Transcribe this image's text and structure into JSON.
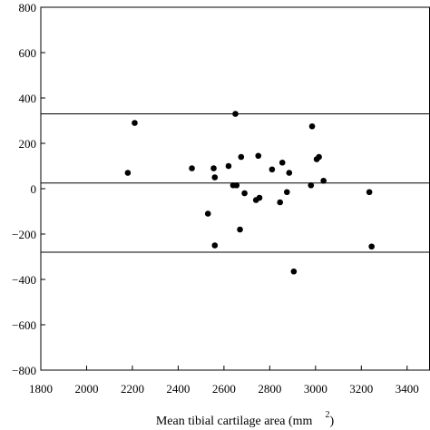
{
  "chart_data": {
    "type": "scatter",
    "title": "",
    "xlabel": "Mean tibial cartilage area (mm",
    "xlabel_superscript": "2",
    "xlabel_close": ")",
    "ylabel": "",
    "xlim": [
      1800,
      3500
    ],
    "ylim": [
      -800,
      800
    ],
    "x_ticks": [
      1800,
      2000,
      2200,
      2400,
      2600,
      2800,
      3000,
      3200,
      3400
    ],
    "y_ticks": [
      800,
      600,
      400,
      200,
      0,
      -200,
      -400,
      -600,
      -800
    ],
    "x_tick_labels": [
      "1800",
      "2000",
      "2200",
      "2400",
      "2600",
      "2800",
      "3000",
      "3200",
      "3400"
    ],
    "y_tick_labels": [
      "800",
      "600",
      "400",
      "200",
      "0",
      "−200",
      "−400",
      "−600",
      "−800"
    ],
    "reference_lines": [
      330,
      25,
      -280
    ],
    "grid": false,
    "points": [
      {
        "x": 2180,
        "y": 70
      },
      {
        "x": 2210,
        "y": 290
      },
      {
        "x": 2460,
        "y": 90
      },
      {
        "x": 2530,
        "y": -110
      },
      {
        "x": 2555,
        "y": 90
      },
      {
        "x": 2560,
        "y": 50
      },
      {
        "x": 2560,
        "y": -250
      },
      {
        "x": 2620,
        "y": 100
      },
      {
        "x": 2640,
        "y": 15
      },
      {
        "x": 2650,
        "y": 330
      },
      {
        "x": 2655,
        "y": 15
      },
      {
        "x": 2670,
        "y": -180
      },
      {
        "x": 2675,
        "y": 140
      },
      {
        "x": 2690,
        "y": -20
      },
      {
        "x": 2740,
        "y": -50
      },
      {
        "x": 2750,
        "y": 145
      },
      {
        "x": 2755,
        "y": -40
      },
      {
        "x": 2810,
        "y": 85
      },
      {
        "x": 2845,
        "y": -60
      },
      {
        "x": 2855,
        "y": 115
      },
      {
        "x": 2875,
        "y": -15
      },
      {
        "x": 2885,
        "y": 70
      },
      {
        "x": 2905,
        "y": -365
      },
      {
        "x": 2980,
        "y": 15
      },
      {
        "x": 2985,
        "y": 275
      },
      {
        "x": 3005,
        "y": 130
      },
      {
        "x": 3015,
        "y": 140
      },
      {
        "x": 3035,
        "y": 35
      },
      {
        "x": 3235,
        "y": -15
      },
      {
        "x": 3245,
        "y": -255
      }
    ]
  }
}
